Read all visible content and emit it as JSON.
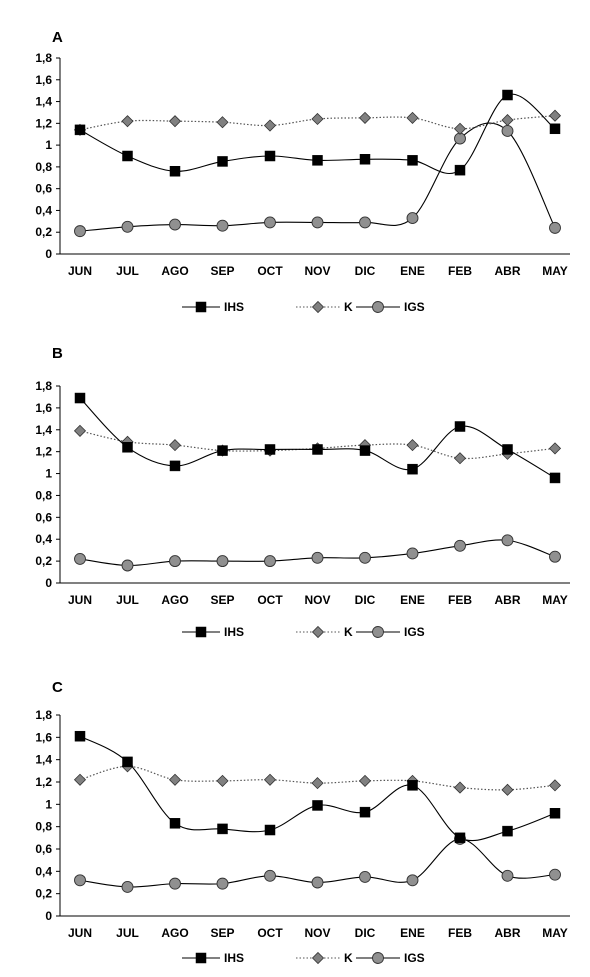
{
  "chart_data": [
    {
      "type": "line",
      "panel_label": "A",
      "categories": [
        "JUN",
        "JUL",
        "AGO",
        "SEP",
        "OCT",
        "NOV",
        "DIC",
        "ENE",
        "FEB",
        "ABR",
        "MAY"
      ],
      "ylim": [
        0,
        1.8
      ],
      "yticks": [
        "0",
        "0,2",
        "0,4",
        "0,6",
        "0,8",
        "1",
        "1,2",
        "1,4",
        "1,6",
        "1,8"
      ],
      "grid": false,
      "legend_position": "bottom",
      "series": [
        {
          "name": "IHS",
          "marker": "square",
          "line": "solid",
          "color": "#000000",
          "values": [
            1.14,
            0.9,
            0.76,
            0.85,
            0.9,
            0.86,
            0.87,
            0.86,
            0.77,
            1.46,
            1.15
          ]
        },
        {
          "name": "K",
          "marker": "diamond",
          "line": "dotted",
          "color": "#808080",
          "values": [
            1.14,
            1.22,
            1.22,
            1.21,
            1.18,
            1.24,
            1.25,
            1.25,
            1.15,
            1.23,
            1.27
          ]
        },
        {
          "name": "IGS",
          "marker": "circle",
          "line": "solid",
          "color": "#909090",
          "values": [
            0.21,
            0.25,
            0.27,
            0.26,
            0.29,
            0.29,
            0.29,
            0.33,
            1.06,
            1.13,
            0.24
          ]
        }
      ]
    },
    {
      "type": "line",
      "panel_label": "B",
      "categories": [
        "JUN",
        "JUL",
        "AGO",
        "SEP",
        "OCT",
        "NOV",
        "DIC",
        "ENE",
        "FEB",
        "ABR",
        "MAY"
      ],
      "ylim": [
        0,
        1.8
      ],
      "yticks": [
        "0",
        "0,2",
        "0,4",
        "0,6",
        "0,8",
        "1",
        "1,2",
        "1,4",
        "1,6",
        "1,8"
      ],
      "grid": false,
      "legend_position": "bottom",
      "series": [
        {
          "name": "IHS",
          "marker": "square",
          "line": "solid",
          "color": "#000000",
          "values": [
            1.69,
            1.24,
            1.07,
            1.21,
            1.22,
            1.22,
            1.21,
            1.04,
            1.43,
            1.22,
            0.96
          ]
        },
        {
          "name": "K",
          "marker": "diamond",
          "line": "dotted",
          "color": "#808080",
          "values": [
            1.39,
            1.29,
            1.26,
            1.21,
            1.21,
            1.23,
            1.26,
            1.26,
            1.14,
            1.18,
            1.23
          ]
        },
        {
          "name": "IGS",
          "marker": "circle",
          "line": "solid",
          "color": "#909090",
          "values": [
            0.22,
            0.16,
            0.2,
            0.2,
            0.2,
            0.23,
            0.23,
            0.27,
            0.34,
            0.39,
            0.24
          ]
        }
      ]
    },
    {
      "type": "line",
      "panel_label": "C",
      "categories": [
        "JUN",
        "JUL",
        "AGO",
        "SEP",
        "OCT",
        "NOV",
        "DIC",
        "ENE",
        "FEB",
        "ABR",
        "MAY"
      ],
      "ylim": [
        0,
        1.8
      ],
      "yticks": [
        "0",
        "0,2",
        "0,4",
        "0,6",
        "0,8",
        "1",
        "1,2",
        "1,4",
        "1,6",
        "1,8"
      ],
      "grid": false,
      "legend_position": "bottom",
      "series": [
        {
          "name": "IHS",
          "marker": "square",
          "line": "solid",
          "color": "#000000",
          "values": [
            1.61,
            1.38,
            0.83,
            0.78,
            0.77,
            0.99,
            0.93,
            1.17,
            0.7,
            0.76,
            0.92
          ]
        },
        {
          "name": "K",
          "marker": "diamond",
          "line": "dotted",
          "color": "#808080",
          "values": [
            1.22,
            1.34,
            1.22,
            1.21,
            1.22,
            1.19,
            1.21,
            1.21,
            1.15,
            1.13,
            1.17
          ]
        },
        {
          "name": "IGS",
          "marker": "circle",
          "line": "solid",
          "color": "#909090",
          "values": [
            0.32,
            0.26,
            0.29,
            0.29,
            0.36,
            0.3,
            0.35,
            0.32,
            0.69,
            0.36,
            0.37
          ]
        }
      ]
    }
  ]
}
